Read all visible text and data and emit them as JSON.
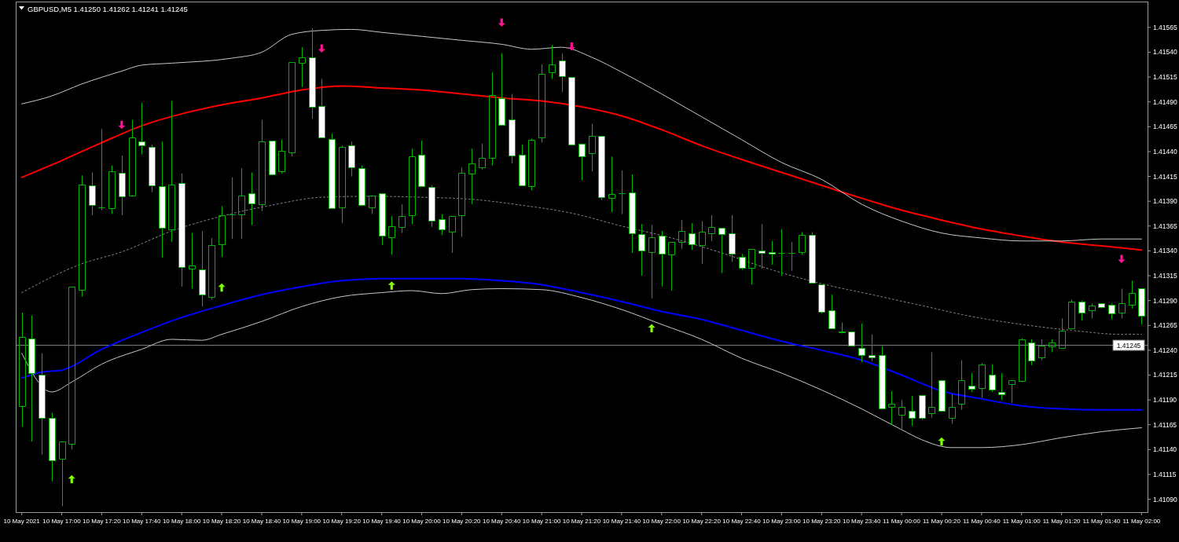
{
  "chart_data": {
    "type": "candlestick",
    "title": "GBPUSD,M5 1.41250 1.41262 1.41241 1.41245",
    "color": "#00b400",
    "x": [
      "2021-05-10T16:40",
      "2021-05-10T16:45",
      "2021-05-10T16:50",
      "2021-05-10T16:55",
      "2021-05-10T17:00",
      "2021-05-10T17:05",
      "2021-05-10T17:10",
      "2021-05-10T17:15",
      "2021-05-10T17:20",
      "2021-05-10T17:25",
      "2021-05-10T17:30",
      "2021-05-10T17:35",
      "2021-05-10T17:40",
      "2021-05-10T17:45",
      "2021-05-10T17:50",
      "2021-05-10T17:55",
      "2021-05-10T18:00",
      "2021-05-10T18:05",
      "2021-05-10T18:10",
      "2021-05-10T18:15",
      "2021-05-10T18:20",
      "2021-05-10T18:25",
      "2021-05-10T18:30",
      "2021-05-10T18:35",
      "2021-05-10T18:40",
      "2021-05-10T18:45",
      "2021-05-10T18:50",
      "2021-05-10T18:55",
      "2021-05-10T19:00",
      "2021-05-10T19:05",
      "2021-05-10T19:10",
      "2021-05-10T19:15",
      "2021-05-10T19:20",
      "2021-05-10T19:25",
      "2021-05-10T19:30",
      "2021-05-10T19:35",
      "2021-05-10T19:40",
      "2021-05-10T19:45",
      "2021-05-10T19:50",
      "2021-05-10T19:55",
      "2021-05-10T20:00",
      "2021-05-10T20:05",
      "2021-05-10T20:10",
      "2021-05-10T20:15",
      "2021-05-10T20:20",
      "2021-05-10T20:25",
      "2021-05-10T20:30",
      "2021-05-10T20:35",
      "2021-05-10T20:40",
      "2021-05-10T20:45",
      "2021-05-10T20:50",
      "2021-05-10T20:55",
      "2021-05-10T21:00",
      "2021-05-10T21:05",
      "2021-05-10T21:10",
      "2021-05-10T21:15",
      "2021-05-10T21:20",
      "2021-05-10T21:25",
      "2021-05-10T21:30",
      "2021-05-10T21:35",
      "2021-05-10T21:40",
      "2021-05-10T21:45",
      "2021-05-10T21:50",
      "2021-05-10T21:55",
      "2021-05-10T22:00",
      "2021-05-10T22:05",
      "2021-05-10T22:10",
      "2021-05-10T22:15",
      "2021-05-10T22:20",
      "2021-05-10T22:25",
      "2021-05-10T22:30",
      "2021-05-10T22:35",
      "2021-05-10T22:40",
      "2021-05-10T22:45",
      "2021-05-10T22:50",
      "2021-05-10T22:55",
      "2021-05-10T23:00",
      "2021-05-10T23:05",
      "2021-05-10T23:10",
      "2021-05-10T23:15",
      "2021-05-10T23:20",
      "2021-05-10T23:25",
      "2021-05-10T23:30",
      "2021-05-10T23:35",
      "2021-05-10T23:40",
      "2021-05-10T23:45",
      "2021-05-10T23:50",
      "2021-05-10T23:55",
      "2021-05-11T00:00",
      "2021-05-11T00:05",
      "2021-05-11T00:10",
      "2021-05-11T00:15",
      "2021-05-11T00:20",
      "2021-05-11T00:25",
      "2021-05-11T00:30",
      "2021-05-11T00:35",
      "2021-05-11T00:40",
      "2021-05-11T00:45",
      "2021-05-11T00:50",
      "2021-05-11T00:55",
      "2021-05-11T01:00",
      "2021-05-11T01:05",
      "2021-05-11T01:10",
      "2021-05-11T01:15",
      "2021-05-11T01:20",
      "2021-05-11T01:25",
      "2021-05-11T01:30",
      "2021-05-11T01:35",
      "2021-05-11T01:40",
      "2021-05-11T01:45",
      "2021-05-11T01:50",
      "2021-05-11T01:55",
      "2021-05-11T02:00"
    ],
    "ohlc": [
      [
        1.41184,
        1.41278,
        1.41163,
        1.41253
      ],
      [
        1.41252,
        1.41275,
        1.41148,
        1.41217
      ],
      [
        1.41215,
        1.41237,
        1.41135,
        1.41172
      ],
      [
        1.41172,
        1.41177,
        1.41108,
        1.41129
      ],
      [
        1.41131,
        1.41148,
        1.41083,
        1.41148
      ],
      [
        1.41146,
        1.41304,
        1.4114,
        1.41304
      ],
      [
        1.41301,
        1.41416,
        1.41294,
        1.41407
      ],
      [
        1.41406,
        1.41419,
        1.41376,
        1.41386
      ],
      [
        1.41384,
        1.41463,
        1.41381,
        1.41384
      ],
      [
        1.41383,
        1.41426,
        1.41377,
        1.4142
      ],
      [
        1.41419,
        1.41436,
        1.41376,
        1.41395
      ],
      [
        1.41396,
        1.41472,
        1.41396,
        1.41454
      ],
      [
        1.4145,
        1.41489,
        1.41437,
        1.41446
      ],
      [
        1.41445,
        1.41447,
        1.41399,
        1.41406
      ],
      [
        1.41405,
        1.4145,
        1.41333,
        1.41363
      ],
      [
        1.41362,
        1.41491,
        1.41349,
        1.41407
      ],
      [
        1.41408,
        1.41418,
        1.41304,
        1.41324
      ],
      [
        1.41322,
        1.41358,
        1.41302,
        1.41325
      ],
      [
        1.41321,
        1.4136,
        1.41284,
        1.41296
      ],
      [
        1.41294,
        1.41353,
        1.41291,
        1.41346
      ],
      [
        1.41347,
        1.41385,
        1.41334,
        1.41376
      ],
      [
        1.41377,
        1.41414,
        1.41352,
        1.41377
      ],
      [
        1.41377,
        1.41423,
        1.41352,
        1.41396
      ],
      [
        1.41398,
        1.41419,
        1.41366,
        1.41388
      ],
      [
        1.41387,
        1.41472,
        1.4138,
        1.4145
      ],
      [
        1.41451,
        1.41451,
        1.41416,
        1.41417
      ],
      [
        1.4142,
        1.41452,
        1.41418,
        1.41441
      ],
      [
        1.41439,
        1.4153,
        1.41435,
        1.4153
      ],
      [
        1.41529,
        1.41545,
        1.41505,
        1.41535
      ],
      [
        1.41535,
        1.41564,
        1.41473,
        1.41485
      ],
      [
        1.41486,
        1.41513,
        1.41454,
        1.41454
      ],
      [
        1.41453,
        1.41458,
        1.41383,
        1.41383
      ],
      [
        1.41384,
        1.41446,
        1.41368,
        1.41445
      ],
      [
        1.41446,
        1.4145,
        1.41415,
        1.41424
      ],
      [
        1.41423,
        1.41426,
        1.41385,
        1.41386
      ],
      [
        1.41384,
        1.41396,
        1.41377,
        1.41396
      ],
      [
        1.41398,
        1.41398,
        1.41346,
        1.41355
      ],
      [
        1.41354,
        1.41375,
        1.41336,
        1.41365
      ],
      [
        1.41364,
        1.41387,
        1.41358,
        1.41375
      ],
      [
        1.41376,
        1.41443,
        1.41367,
        1.41435
      ],
      [
        1.41437,
        1.41451,
        1.41405,
        1.41405
      ],
      [
        1.41404,
        1.41406,
        1.41364,
        1.4137
      ],
      [
        1.41372,
        1.41377,
        1.41356,
        1.41362
      ],
      [
        1.41359,
        1.41375,
        1.41338,
        1.41375
      ],
      [
        1.41376,
        1.41424,
        1.41354,
        1.41419
      ],
      [
        1.41418,
        1.41443,
        1.41387,
        1.41428
      ],
      [
        1.41424,
        1.41448,
        1.41422,
        1.41434
      ],
      [
        1.41434,
        1.4152,
        1.41426,
        1.41497
      ],
      [
        1.41494,
        1.41539,
        1.41467,
        1.41467
      ],
      [
        1.41472,
        1.41498,
        1.41428,
        1.41436
      ],
      [
        1.41437,
        1.41447,
        1.41406,
        1.41406
      ],
      [
        1.41405,
        1.41453,
        1.41401,
        1.41452
      ],
      [
        1.41454,
        1.41528,
        1.41449,
        1.41518
      ],
      [
        1.4152,
        1.41547,
        1.41513,
        1.41528
      ],
      [
        1.41532,
        1.41539,
        1.415,
        1.41516
      ],
      [
        1.41515,
        1.41515,
        1.41447,
        1.41447
      ],
      [
        1.41448,
        1.41448,
        1.41411,
        1.41435
      ],
      [
        1.41438,
        1.41468,
        1.4142,
        1.41456
      ],
      [
        1.41456,
        1.41456,
        1.41391,
        1.41394
      ],
      [
        1.41393,
        1.41435,
        1.41379,
        1.41397
      ],
      [
        1.41398,
        1.41421,
        1.41377,
        1.41398
      ],
      [
        1.41399,
        1.41417,
        1.41338,
        1.41358
      ],
      [
        1.41357,
        1.41367,
        1.41315,
        1.4134
      ],
      [
        1.41339,
        1.41366,
        1.41292,
        1.41354
      ],
      [
        1.41355,
        1.4136,
        1.41304,
        1.41337
      ],
      [
        1.41336,
        1.41349,
        1.413,
        1.41349
      ],
      [
        1.41349,
        1.41371,
        1.41342,
        1.4136
      ],
      [
        1.41358,
        1.41368,
        1.41341,
        1.41347
      ],
      [
        1.41346,
        1.4137,
        1.41327,
        1.41359
      ],
      [
        1.41358,
        1.41376,
        1.4135,
        1.41364
      ],
      [
        1.41363,
        1.41363,
        1.41318,
        1.41357
      ],
      [
        1.41358,
        1.41376,
        1.41329,
        1.41337
      ],
      [
        1.41334,
        1.41337,
        1.41321,
        1.41323
      ],
      [
        1.41323,
        1.41342,
        1.41306,
        1.41342
      ],
      [
        1.4134,
        1.41367,
        1.41322,
        1.41338
      ],
      [
        1.41339,
        1.4135,
        1.41326,
        1.41337
      ],
      [
        1.41338,
        1.41362,
        1.41315,
        1.41338
      ],
      [
        1.41338,
        1.41349,
        1.4132,
        1.41338
      ],
      [
        1.41339,
        1.41359,
        1.41336,
        1.41356
      ],
      [
        1.41356,
        1.41359,
        1.41308,
        1.41308
      ],
      [
        1.41306,
        1.41306,
        1.41277,
        1.41279
      ],
      [
        1.4128,
        1.41296,
        1.41262,
        1.41262
      ],
      [
        1.41259,
        1.41268,
        1.41257,
        1.41258
      ],
      [
        1.41259,
        1.41259,
        1.41244,
        1.41245
      ],
      [
        1.41242,
        1.41267,
        1.41228,
        1.41235
      ],
      [
        1.41235,
        1.41256,
        1.41229,
        1.41233
      ],
      [
        1.41235,
        1.41244,
        1.41181,
        1.41181
      ],
      [
        1.41183,
        1.41199,
        1.41165,
        1.41186
      ],
      [
        1.41175,
        1.4119,
        1.41161,
        1.41183
      ],
      [
        1.41179,
        1.41194,
        1.41164,
        1.41172
      ],
      [
        1.41195,
        1.41195,
        1.4117,
        1.41172
      ],
      [
        1.41177,
        1.41238,
        1.41172,
        1.41183
      ],
      [
        1.4121,
        1.4121,
        1.41179,
        1.41179
      ],
      [
        1.41172,
        1.41196,
        1.41166,
        1.41183
      ],
      [
        1.41186,
        1.4123,
        1.4118,
        1.4121
      ],
      [
        1.41204,
        1.41217,
        1.41198,
        1.41201
      ],
      [
        1.41202,
        1.41227,
        1.41192,
        1.41226
      ],
      [
        1.41215,
        1.41226,
        1.41198,
        1.412
      ],
      [
        1.41198,
        1.41217,
        1.4119,
        1.41196
      ],
      [
        1.41206,
        1.4121,
        1.41187,
        1.4121
      ],
      [
        1.41209,
        1.41252,
        1.41208,
        1.41251
      ],
      [
        1.41248,
        1.41251,
        1.41225,
        1.4123
      ],
      [
        1.41233,
        1.41251,
        1.4123,
        1.41245
      ],
      [
        1.41244,
        1.41251,
        1.41238,
        1.41248
      ],
      [
        1.41242,
        1.41272,
        1.41242,
        1.4126
      ],
      [
        1.41262,
        1.41291,
        1.41262,
        1.41289
      ],
      [
        1.41289,
        1.4129,
        1.4127,
        1.41278
      ],
      [
        1.4128,
        1.41287,
        1.41272,
        1.41285
      ],
      [
        1.41287,
        1.41287,
        1.41282,
        1.41283
      ],
      [
        1.41286,
        1.41287,
        1.41271,
        1.41277
      ],
      [
        1.41278,
        1.41302,
        1.41272,
        1.41287
      ],
      [
        1.41286,
        1.4131,
        1.41282,
        1.41298
      ],
      [
        1.41302,
        1.41302,
        1.41266,
        1.41275
      ]
    ],
    "series": [
      {
        "type": "line",
        "color": "#ff0000",
        "x": [
          "2021-05-10T16:40",
          "2021-05-10T17:00",
          "2021-05-10T17:20",
          "2021-05-10T17:40",
          "2021-05-10T18:00",
          "2021-05-10T18:20",
          "2021-05-10T18:40",
          "2021-05-10T19:00",
          "2021-05-10T19:20",
          "2021-05-10T19:40",
          "2021-05-10T20:00",
          "2021-05-10T20:20",
          "2021-05-10T20:40",
          "2021-05-10T21:00",
          "2021-05-10T21:20",
          "2021-05-10T21:40",
          "2021-05-10T22:00",
          "2021-05-10T22:20",
          "2021-05-10T22:40",
          "2021-05-10T23:00",
          "2021-05-10T23:20",
          "2021-05-10T23:40",
          "2021-05-11T00:00",
          "2021-05-11T00:20",
          "2021-05-11T00:40",
          "2021-05-11T01:00",
          "2021-05-11T01:20",
          "2021-05-11T01:40",
          "2021-05-11T02:00"
        ],
        "values": [
          1.41414,
          1.41431,
          1.41449,
          1.41466,
          1.41478,
          1.41487,
          1.41494,
          1.41502,
          1.41506,
          1.41504,
          1.41502,
          1.41498,
          1.41494,
          1.41491,
          1.41485,
          1.41476,
          1.41462,
          1.41446,
          1.41432,
          1.41419,
          1.41406,
          1.41393,
          1.41381,
          1.41371,
          1.41362,
          1.41355,
          1.41349,
          1.41345,
          1.41341
        ]
      },
      {
        "type": "line",
        "color": "#0000ff",
        "x": [
          "2021-05-10T16:40",
          "2021-05-10T16:50",
          "2021-05-10T17:00",
          "2021-05-10T17:20",
          "2021-05-10T17:40",
          "2021-05-10T18:00",
          "2021-05-10T18:20",
          "2021-05-10T18:40",
          "2021-05-10T19:00",
          "2021-05-10T19:20",
          "2021-05-10T19:40",
          "2021-05-10T20:00",
          "2021-05-10T20:20",
          "2021-05-10T20:40",
          "2021-05-10T21:00",
          "2021-05-10T21:20",
          "2021-05-10T21:40",
          "2021-05-10T22:00",
          "2021-05-10T22:20",
          "2021-05-10T22:40",
          "2021-05-10T23:00",
          "2021-05-10T23:20",
          "2021-05-10T23:40",
          "2021-05-11T00:00",
          "2021-05-11T00:20",
          "2021-05-11T00:40",
          "2021-05-11T01:00",
          "2021-05-11T01:20",
          "2021-05-11T01:40",
          "2021-05-11T02:00"
        ],
        "values": [
          1.41212,
          1.41218,
          1.4122,
          1.41241,
          1.41258,
          1.41273,
          1.41285,
          1.41296,
          1.41304,
          1.4131,
          1.41312,
          1.41312,
          1.41312,
          1.4131,
          1.41306,
          1.41298,
          1.41289,
          1.41279,
          1.41271,
          1.4126,
          1.41249,
          1.4124,
          1.4123,
          1.41215,
          1.41199,
          1.41191,
          1.41184,
          1.41181,
          1.4118,
          1.4118
        ]
      },
      {
        "type": "line",
        "color": "#c8c8c8",
        "x": [
          "2021-05-10T16:40",
          "2021-05-10T16:55",
          "2021-05-10T17:10",
          "2021-05-10T17:30",
          "2021-05-10T17:40",
          "2021-05-10T17:55",
          "2021-05-10T18:25",
          "2021-05-10T18:40",
          "2021-05-10T18:55",
          "2021-05-10T19:10",
          "2021-05-10T19:25",
          "2021-05-10T19:40",
          "2021-05-10T20:00",
          "2021-05-10T20:20",
          "2021-05-10T20:40",
          "2021-05-10T20:55",
          "2021-05-10T21:10",
          "2021-05-10T21:25",
          "2021-05-10T21:40",
          "2021-05-10T22:00",
          "2021-05-10T22:20",
          "2021-05-10T22:40",
          "2021-05-10T23:00",
          "2021-05-10T23:20",
          "2021-05-10T23:40",
          "2021-05-11T00:00",
          "2021-05-11T00:20",
          "2021-05-11T00:40",
          "2021-05-11T01:00",
          "2021-05-11T01:20",
          "2021-05-11T01:40",
          "2021-05-11T02:00"
        ],
        "values": [
          1.41488,
          1.41496,
          1.41508,
          1.41521,
          1.41527,
          1.41529,
          1.41534,
          1.4154,
          1.41558,
          1.41562,
          1.41563,
          1.4156,
          1.41556,
          1.41552,
          1.41548,
          1.41543,
          1.41545,
          1.41535,
          1.4152,
          1.41498,
          1.41475,
          1.41452,
          1.41429,
          1.41412,
          1.41387,
          1.4137,
          1.41358,
          1.41353,
          1.4135,
          1.4135,
          1.41352,
          1.41352
        ]
      },
      {
        "type": "line",
        "color": "#c8c8c8",
        "x": [
          "2021-05-10T16:40",
          "2021-05-10T16:55",
          "2021-05-10T17:05",
          "2021-05-10T17:20",
          "2021-05-10T17:40",
          "2021-05-10T17:55",
          "2021-05-10T18:10",
          "2021-05-10T18:20",
          "2021-05-10T18:40",
          "2021-05-10T19:00",
          "2021-05-10T19:20",
          "2021-05-10T19:40",
          "2021-05-10T19:55",
          "2021-05-10T20:10",
          "2021-05-10T20:25",
          "2021-05-10T20:40",
          "2021-05-10T21:00",
          "2021-05-10T21:20",
          "2021-05-10T21:40",
          "2021-05-10T22:00",
          "2021-05-10T22:20",
          "2021-05-10T22:40",
          "2021-05-10T23:00",
          "2021-05-10T23:20",
          "2021-05-10T23:40",
          "2021-05-11T00:00",
          "2021-05-11T00:10",
          "2021-05-11T00:25",
          "2021-05-11T00:40",
          "2021-05-11T01:00",
          "2021-05-11T01:20",
          "2021-05-11T01:40",
          "2021-05-11T02:00"
        ],
        "values": [
          1.41237,
          1.41198,
          1.41208,
          1.41226,
          1.41241,
          1.41251,
          1.4125,
          1.41256,
          1.41269,
          1.41284,
          1.41294,
          1.41298,
          1.413,
          1.41297,
          1.41301,
          1.41302,
          1.41301,
          1.41293,
          1.41281,
          1.41266,
          1.41251,
          1.41232,
          1.41217,
          1.412,
          1.41181,
          1.4116,
          1.4115,
          1.41142,
          1.41142,
          1.41145,
          1.41152,
          1.41158,
          1.41162
        ]
      },
      {
        "type": "line",
        "color": "#8c8c8c",
        "line_style": "dotted",
        "x": [
          "2021-05-10T16:40",
          "2021-05-10T17:10",
          "2021-05-10T17:30",
          "2021-05-10T17:55",
          "2021-05-10T18:20",
          "2021-05-10T18:45",
          "2021-05-10T19:10",
          "2021-05-10T19:35",
          "2021-05-10T20:00",
          "2021-05-10T20:25",
          "2021-05-10T20:50",
          "2021-05-10T21:15",
          "2021-05-10T21:40",
          "2021-05-10T22:05",
          "2021-05-10T22:30",
          "2021-05-10T22:55",
          "2021-05-10T23:20",
          "2021-05-10T23:45",
          "2021-05-11T00:10",
          "2021-05-11T00:35",
          "2021-05-11T01:00",
          "2021-05-11T01:25",
          "2021-05-11T01:50",
          "2021-05-11T02:00"
        ],
        "values": [
          1.41298,
          1.41327,
          1.41339,
          1.4136,
          1.41375,
          1.41386,
          1.41394,
          1.41395,
          1.41394,
          1.41392,
          1.41386,
          1.41378,
          1.41365,
          1.41353,
          1.41338,
          1.41321,
          1.41307,
          1.41296,
          1.41285,
          1.41274,
          1.41266,
          1.4126,
          1.41256,
          1.41256
        ]
      },
      {
        "type": "scatter",
        "color": "#ff1493",
        "x": [
          "2021-05-10T17:30",
          "2021-05-10T19:10",
          "2021-05-10T20:40",
          "2021-05-10T21:15",
          "2021-05-11T01:50"
        ],
        "values": [
          1.41467,
          1.41544,
          1.4157,
          1.41546,
          1.41332
        ]
      },
      {
        "type": "scatter",
        "color": "#7fff00",
        "x": [
          "2021-05-10T17:05",
          "2021-05-10T18:20",
          "2021-05-10T19:45",
          "2021-05-10T21:55",
          "2021-05-11T00:20"
        ],
        "values": [
          1.4111,
          1.41303,
          1.41305,
          1.41262,
          1.41148
        ]
      }
    ],
    "xlim": [
      "2021-05-10T16:37",
      "2021-05-11T02:03"
    ],
    "xticks": [
      {
        "value": "2021-05-10T16:40",
        "label": "10 May 2021"
      },
      {
        "value": "2021-05-10T17:00",
        "label": "10 May 17:00"
      },
      {
        "value": "2021-05-10T17:20",
        "label": "10 May 17:20"
      },
      {
        "value": "2021-05-10T17:40",
        "label": "10 May 17:40"
      },
      {
        "value": "2021-05-10T18:00",
        "label": "10 May 18:00"
      },
      {
        "value": "2021-05-10T18:20",
        "label": "10 May 18:20"
      },
      {
        "value": "2021-05-10T18:40",
        "label": "10 May 18:40"
      },
      {
        "value": "2021-05-10T19:00",
        "label": "10 May 19:00"
      },
      {
        "value": "2021-05-10T19:20",
        "label": "10 May 19:20"
      },
      {
        "value": "2021-05-10T19:40",
        "label": "10 May 19:40"
      },
      {
        "value": "2021-05-10T20:00",
        "label": "10 May 20:00"
      },
      {
        "value": "2021-05-10T20:20",
        "label": "10 May 20:20"
      },
      {
        "value": "2021-05-10T20:40",
        "label": "10 May 20:40"
      },
      {
        "value": "2021-05-10T21:00",
        "label": "10 May 21:00"
      },
      {
        "value": "2021-05-10T21:20",
        "label": "10 May 21:20"
      },
      {
        "value": "2021-05-10T21:40",
        "label": "10 May 21:40"
      },
      {
        "value": "2021-05-10T22:00",
        "label": "10 May 22:00"
      },
      {
        "value": "2021-05-10T22:20",
        "label": "10 May 22:20"
      },
      {
        "value": "2021-05-10T22:40",
        "label": "10 May 22:40"
      },
      {
        "value": "2021-05-10T23:00",
        "label": "10 May 23:00"
      },
      {
        "value": "2021-05-10T23:20",
        "label": "10 May 23:20"
      },
      {
        "value": "2021-05-10T23:40",
        "label": "10 May 23:40"
      },
      {
        "value": "2021-05-11T00:00",
        "label": "11 May 00:00"
      },
      {
        "value": "2021-05-11T00:20",
        "label": "11 May 00:20"
      },
      {
        "value": "2021-05-11T00:40",
        "label": "11 May 00:40"
      },
      {
        "value": "2021-05-11T01:00",
        "label": "11 May 01:00"
      },
      {
        "value": "2021-05-11T01:20",
        "label": "11 May 01:20"
      },
      {
        "value": "2021-05-11T01:40",
        "label": "11 May 01:40"
      },
      {
        "value": "2021-05-11T02:00",
        "label": "11 May 02:00"
      }
    ],
    "ylim": [
      1.41077,
      1.41591
    ],
    "yticks": [
      {
        "value": 1.4109,
        "label": "1.41090"
      },
      1.41115,
      {
        "value": 1.4114,
        "label": "1.41140"
      },
      1.41165,
      {
        "value": 1.4119,
        "label": "1.41190"
      },
      1.41215,
      {
        "value": 1.4124,
        "label": "1.41240"
      },
      1.41265,
      {
        "value": 1.4129,
        "label": "1.41290"
      },
      1.41315,
      {
        "value": 1.4134,
        "label": "1.41340"
      },
      1.41365,
      {
        "value": 1.4139,
        "label": "1.41390"
      },
      1.41415,
      {
        "value": 1.4144,
        "label": "1.41440"
      },
      1.41465,
      {
        "value": 1.4149,
        "label": "1.41490"
      },
      1.41515,
      {
        "value": 1.4154,
        "label": "1.41540"
      },
      1.41565
    ],
    "ref_lines": [
      {
        "axis": "y",
        "value": 1.41245,
        "label": "1.41245",
        "color": "#7a8089"
      }
    ]
  }
}
